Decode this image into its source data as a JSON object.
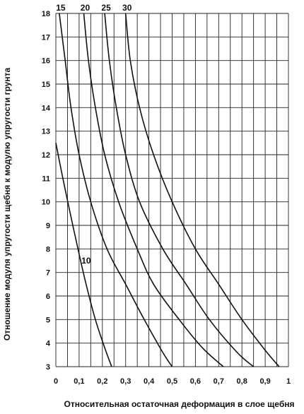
{
  "chart_data": {
    "type": "line",
    "title": "",
    "xlabel": "Относительная остаточная деформация в слое щебня",
    "ylabel": "Отношение модуля упругости щебня к модулю упругости грунта",
    "xlim": [
      0,
      1
    ],
    "ylim": [
      3,
      18
    ],
    "x_ticks": [
      "0",
      "0,1",
      "0,2",
      "0,3",
      "0,4",
      "0,5",
      "0,6",
      "0,7",
      "0,8",
      "0,9",
      "1"
    ],
    "y_ticks": [
      "3",
      "4",
      "5",
      "6",
      "7",
      "8",
      "9",
      "10",
      "11",
      "12",
      "13",
      "14",
      "15",
      "16",
      "17",
      "18"
    ],
    "grid": true,
    "series": [
      {
        "name": "10",
        "points": [
          [
            0.0,
            12.5
          ],
          [
            0.03,
            11.0
          ],
          [
            0.06,
            9.6
          ],
          [
            0.095,
            8.0
          ],
          [
            0.13,
            6.5
          ],
          [
            0.17,
            5.0
          ],
          [
            0.21,
            3.8
          ],
          [
            0.24,
            3.0
          ]
        ]
      },
      {
        "name": "15",
        "points": [
          [
            0.015,
            18.0
          ],
          [
            0.04,
            16.0
          ],
          [
            0.065,
            14.0
          ],
          [
            0.1,
            12.0
          ],
          [
            0.15,
            10.0
          ],
          [
            0.22,
            8.0
          ],
          [
            0.3,
            6.5
          ],
          [
            0.38,
            5.0
          ],
          [
            0.46,
            3.6
          ],
          [
            0.5,
            3.0
          ]
        ]
      },
      {
        "name": "20",
        "points": [
          [
            0.12,
            18.0
          ],
          [
            0.14,
            16.0
          ],
          [
            0.17,
            14.0
          ],
          [
            0.21,
            12.0
          ],
          [
            0.27,
            10.0
          ],
          [
            0.35,
            8.0
          ],
          [
            0.42,
            6.5
          ],
          [
            0.53,
            5.0
          ],
          [
            0.63,
            3.8
          ],
          [
            0.72,
            3.0
          ]
        ]
      },
      {
        "name": "25",
        "points": [
          [
            0.21,
            18.0
          ],
          [
            0.23,
            16.0
          ],
          [
            0.26,
            14.0
          ],
          [
            0.3,
            12.0
          ],
          [
            0.36,
            10.0
          ],
          [
            0.46,
            8.0
          ],
          [
            0.56,
            6.5
          ],
          [
            0.66,
            5.0
          ],
          [
            0.78,
            3.6
          ],
          [
            0.85,
            3.0
          ]
        ]
      },
      {
        "name": "30",
        "points": [
          [
            0.3,
            18.0
          ],
          [
            0.32,
            16.0
          ],
          [
            0.36,
            14.0
          ],
          [
            0.42,
            12.0
          ],
          [
            0.5,
            10.0
          ],
          [
            0.6,
            8.0
          ],
          [
            0.7,
            6.5
          ],
          [
            0.8,
            5.0
          ],
          [
            0.9,
            3.7
          ],
          [
            0.96,
            3.0
          ]
        ]
      }
    ],
    "top_labels": [
      "15",
      "20",
      "25",
      "30"
    ],
    "inline_label": "10"
  }
}
